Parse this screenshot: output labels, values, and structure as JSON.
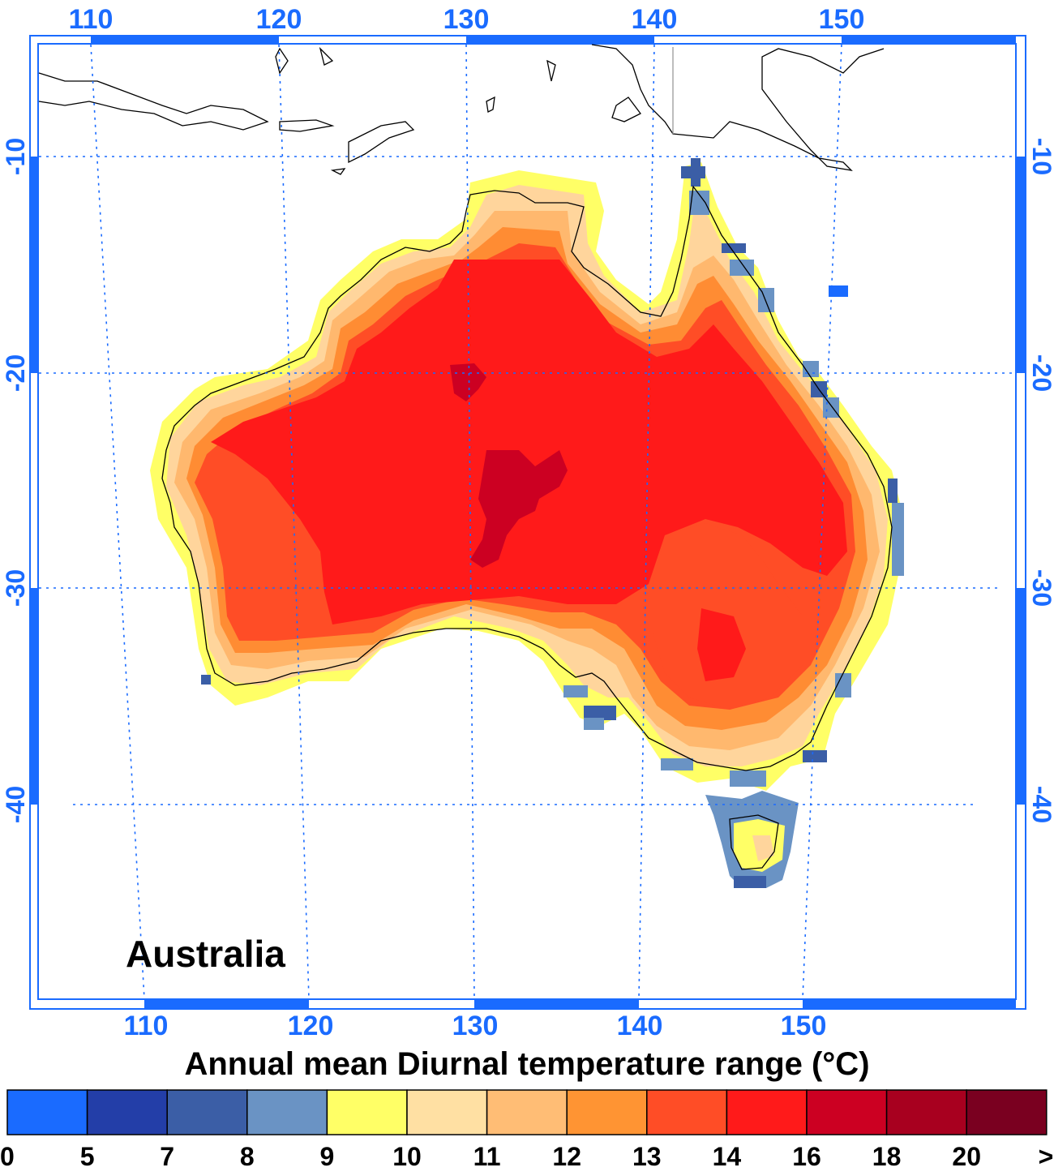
{
  "map": {
    "region_label": "Australia",
    "lon_ticks_top": [
      "110",
      "120",
      "130",
      "140",
      "150"
    ],
    "lon_ticks_bottom": [
      "110",
      "120",
      "130",
      "140",
      "150"
    ],
    "lat_ticks_left": [
      "-10",
      "-20",
      "-30",
      "-40"
    ],
    "lat_ticks_right": [
      "-10",
      "-20",
      "-30",
      "-40"
    ],
    "frame_color": "#1a6bff",
    "land_colors": {
      "coast_low": "#ffff66",
      "coast_mid": "#ffd59c",
      "band_12": "#ffb86e",
      "band_13": "#ff8c33",
      "band_14": "#ff4d26",
      "band_16": "#ff1a1a",
      "band_18": "#cc0022"
    }
  },
  "colorbar": {
    "title": "Annual mean Diurnal temperature range (°C)",
    "labels": [
      "0",
      "5",
      "7",
      "8",
      "9",
      "10",
      "11",
      "12",
      "13",
      "14",
      "16",
      "18",
      "20",
      ">"
    ],
    "colors": [
      "#1a6bff",
      "#233ea8",
      "#3b5ea6",
      "#6a93c4",
      "#ffff66",
      "#ffe0a3",
      "#ffbd75",
      "#ff9433",
      "#ff4d26",
      "#ff1a1a",
      "#cc0022",
      "#a8001f",
      "#7a0020"
    ]
  }
}
